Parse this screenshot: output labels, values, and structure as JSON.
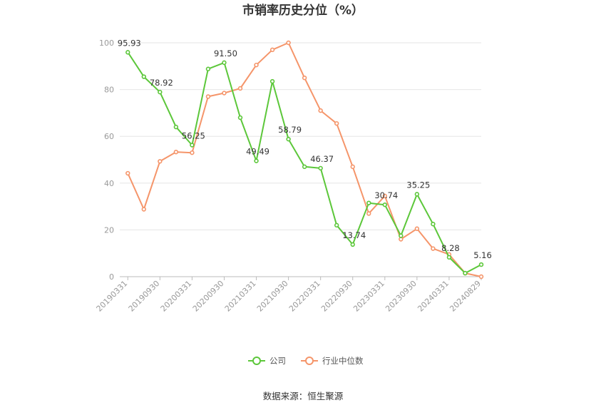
{
  "chart_data": {
    "type": "line",
    "title": "市销率历史分位（%）",
    "source": "数据来源：恒生聚源",
    "ylim": [
      0,
      100
    ],
    "yticks": [
      0,
      20,
      40,
      60,
      80,
      100
    ],
    "x": [
      "20190331",
      "20190630",
      "20190930",
      "20191231",
      "20200331",
      "20200630",
      "20200930",
      "20201231",
      "20210331",
      "20210630",
      "20210930",
      "20211231",
      "20220331",
      "20220630",
      "20220930",
      "20221231",
      "20230331",
      "20230630",
      "20230930",
      "20231231",
      "20240331",
      "20240630",
      "20240829"
    ],
    "xtick_labels": [
      "20190331",
      "20190930",
      "20200331",
      "20200930",
      "20210331",
      "20210930",
      "20220331",
      "20220930",
      "20230331",
      "20230930",
      "20240331",
      "20240829"
    ],
    "grid": true,
    "legend_position": "bottom",
    "series": [
      {
        "name": "公司",
        "color": "#5cc73a",
        "values": [
          95.93,
          85.5,
          78.92,
          64.0,
          56.25,
          88.8,
          91.5,
          68.0,
          49.49,
          83.5,
          58.79,
          47.0,
          46.37,
          22.0,
          13.74,
          31.5,
          30.74,
          17.5,
          35.25,
          22.5,
          8.28,
          1.5,
          5.16
        ],
        "labels": [
          "95.93",
          "",
          "78.92",
          "",
          "56.25",
          "",
          "91.50",
          "",
          "49.49",
          "",
          "58.79",
          "",
          "46.37",
          "",
          "13.74",
          "",
          "30.74",
          "",
          "35.25",
          "",
          "8.28",
          "",
          "5.16"
        ]
      },
      {
        "name": "行业中位数",
        "color": "#f5956a",
        "values": [
          44.2,
          28.8,
          49.3,
          53.3,
          53.0,
          77.0,
          78.5,
          80.5,
          90.5,
          97.0,
          100.0,
          85.0,
          71.0,
          65.5,
          47.0,
          27.0,
          34.5,
          16.0,
          20.5,
          12.0,
          9.5,
          1.5,
          0.0
        ]
      }
    ]
  }
}
